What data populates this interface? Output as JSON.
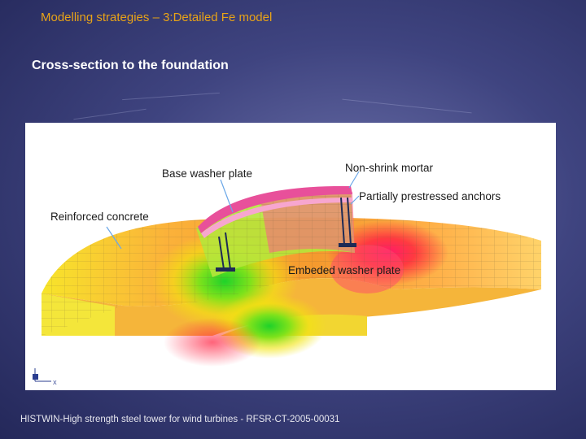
{
  "slide": {
    "title": "Modelling strategies – 3:Detailed Fe model",
    "subtitle": "Cross-section to the foundation",
    "footer": "HISTWIN-High strength steel tower for wind turbines - RFSR-CT-2005-00031"
  },
  "figure": {
    "labels": {
      "base_washer_plate": "Base washer plate",
      "non_shrink_mortar": "Non-shrink mortar",
      "partially_prestressed_anchors": "Partially prestressed anchors",
      "reinforced_concrete": "Reinforced concrete",
      "embeded_washer_plate": "Embeded washer plate"
    },
    "axes": {
      "x": "X"
    }
  },
  "colors": {
    "title": "#e8a317",
    "subtitle": "#ffffff",
    "background": "#3f4480"
  }
}
